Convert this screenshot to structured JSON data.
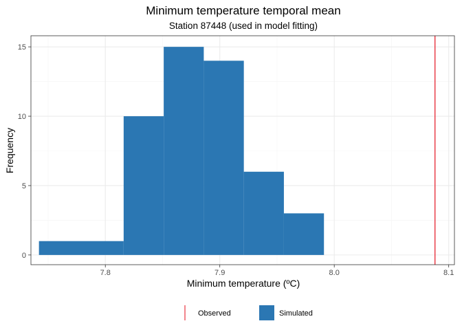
{
  "chart_data": {
    "type": "bar",
    "title": "Minimum temperature temporal mean",
    "subtitle": "Station 87448 (used in model fitting)",
    "xlabel": "Minimum temperature (ºC)",
    "ylabel": "Frequency",
    "xlim": [
      7.735,
      8.105
    ],
    "ylim": [
      -0.7,
      15.8
    ],
    "x_ticks": [
      7.8,
      7.9,
      8.0,
      8.1
    ],
    "x_tick_labels": [
      "7.8",
      "7.9",
      "8.0",
      "8.1"
    ],
    "y_ticks": [
      0,
      5,
      10,
      15
    ],
    "y_tick_labels": [
      "0",
      "5",
      "10",
      "15"
    ],
    "grid": true,
    "bins": [
      {
        "x0": 7.742,
        "x1": 7.816,
        "count": 1
      },
      {
        "x0": 7.816,
        "x1": 7.851,
        "count": 10
      },
      {
        "x0": 7.851,
        "x1": 7.886,
        "count": 15
      },
      {
        "x0": 7.886,
        "x1": 7.921,
        "count": 14
      },
      {
        "x0": 7.921,
        "x1": 7.956,
        "count": 6
      },
      {
        "x0": 7.956,
        "x1": 7.991,
        "count": 3
      }
    ],
    "observed": 8.088,
    "legend": {
      "position": "bottom",
      "entries": [
        {
          "label": "Observed",
          "kind": "line",
          "color": "#e8333f"
        },
        {
          "label": "Simulated",
          "kind": "fill",
          "color": "#2b77b3"
        }
      ]
    },
    "colors": {
      "bar_fill": "#2b77b3",
      "observed_line": "#e8333f",
      "grid_major": "#ebebeb",
      "grid_minor": "#f5f5f5",
      "panel_border": "#333333"
    }
  }
}
